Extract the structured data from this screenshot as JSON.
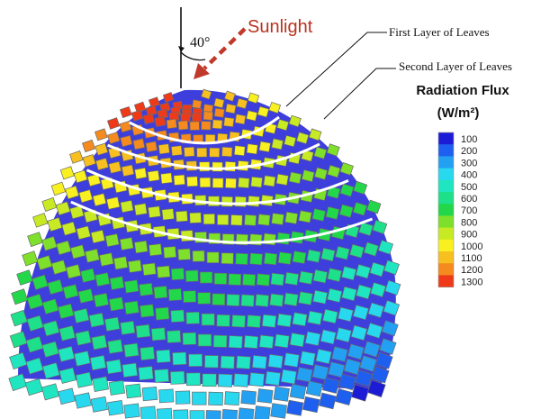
{
  "annotations": {
    "sunlight_label": "Sunlight",
    "angle_label": "40°",
    "first_layer_label": "First Layer of Leaves",
    "second_layer_label": "Second Layer of Leaves"
  },
  "legend": {
    "title_line1": "Radiation Flux",
    "title_line2": "(W/m²)",
    "levels": [
      "100",
      "200",
      "300",
      "400",
      "500",
      "600",
      "700",
      "800",
      "900",
      "1000",
      "1100",
      "1200",
      "1300"
    ],
    "colors": [
      "#1c1cd6",
      "#1e5ff0",
      "#23a0f2",
      "#27d8ee",
      "#1fe6c0",
      "#1ee08a",
      "#22d84a",
      "#7ee02a",
      "#c8ea24",
      "#f8f020",
      "#f7c020",
      "#f58a1e",
      "#ef3a1a"
    ]
  },
  "colors": {
    "sunlight_arrow": "#c0392b",
    "sunlight_text": "#b8331f",
    "leaf_border": "#6a6a6a",
    "canopy_shadow": "#1c1cd6"
  }
}
